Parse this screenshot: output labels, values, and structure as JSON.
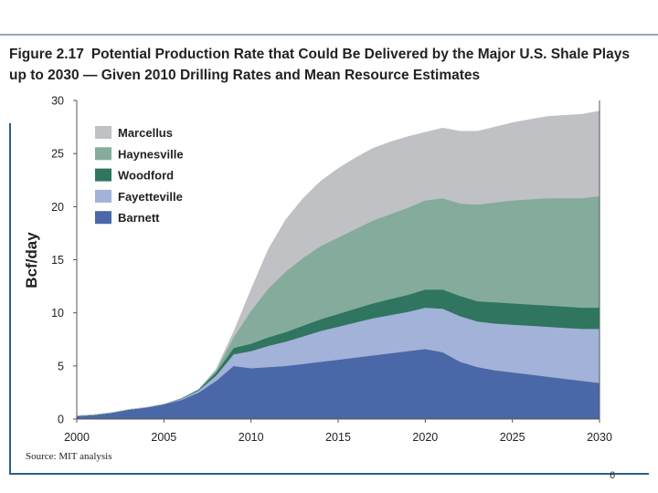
{
  "figure": {
    "number": "Figure 2.17",
    "title": "Potential Production Rate that Could Be Delivered by the Major U.S. Shale Plays up to 2030 — Given 2010 Drilling Rates and Mean Resource Estimates",
    "source": "Source: MIT analysis",
    "page_number": "6"
  },
  "chart_data": {
    "type": "area",
    "stacked": true,
    "title": "Potential Production Rate that Could Be Delivered by the Major U.S. Shale Plays up to 2030 — Given 2010 Drilling Rates and Mean Resource Estimates",
    "xlabel": "",
    "ylabel": "Bcf/day",
    "xlim": [
      2000,
      2030
    ],
    "ylim": [
      0,
      30
    ],
    "x_ticks": [
      2000,
      2005,
      2010,
      2015,
      2020,
      2025,
      2030
    ],
    "y_ticks": [
      0,
      5,
      10,
      15,
      20,
      25,
      30
    ],
    "grid": false,
    "legend_position": "top-left",
    "x": [
      2000,
      2001,
      2002,
      2003,
      2004,
      2005,
      2006,
      2007,
      2008,
      2009,
      2010,
      2011,
      2012,
      2013,
      2014,
      2015,
      2016,
      2017,
      2018,
      2019,
      2020,
      2021,
      2022,
      2023,
      2024,
      2025,
      2026,
      2027,
      2028,
      2029,
      2030
    ],
    "series": [
      {
        "name": "Barnett",
        "color": "#4a68a8",
        "values": [
          0.3,
          0.4,
          0.6,
          0.9,
          1.1,
          1.4,
          1.8,
          2.5,
          3.6,
          5.0,
          4.8,
          4.9,
          5.0,
          5.2,
          5.4,
          5.6,
          5.8,
          6.0,
          6.2,
          6.4,
          6.6,
          6.3,
          5.4,
          4.9,
          4.6,
          4.4,
          4.2,
          4.0,
          3.8,
          3.6,
          3.4
        ]
      },
      {
        "name": "Fayetteville",
        "color": "#a2b2d8",
        "values": [
          0,
          0,
          0,
          0,
          0,
          0,
          0.1,
          0.2,
          0.5,
          1.1,
          1.6,
          2.0,
          2.3,
          2.6,
          2.9,
          3.1,
          3.3,
          3.5,
          3.6,
          3.7,
          3.9,
          4.1,
          4.3,
          4.3,
          4.4,
          4.5,
          4.6,
          4.7,
          4.8,
          4.9,
          5.1
        ]
      },
      {
        "name": "Woodford",
        "color": "#2f7560",
        "values": [
          0,
          0,
          0,
          0,
          0,
          0,
          0.05,
          0.1,
          0.3,
          0.6,
          0.7,
          0.8,
          0.9,
          1.0,
          1.1,
          1.2,
          1.3,
          1.4,
          1.5,
          1.6,
          1.7,
          1.8,
          1.9,
          1.9,
          2.0,
          2.0,
          2.0,
          2.0,
          2.0,
          2.0,
          2.0
        ]
      },
      {
        "name": "Haynesville",
        "color": "#84ab9b",
        "values": [
          0,
          0,
          0,
          0,
          0,
          0,
          0,
          0,
          0.2,
          1.0,
          3.1,
          4.6,
          5.7,
          6.4,
          6.9,
          7.2,
          7.5,
          7.8,
          8.0,
          8.2,
          8.4,
          8.6,
          8.7,
          9.1,
          9.4,
          9.7,
          9.9,
          10.1,
          10.2,
          10.3,
          10.5
        ]
      },
      {
        "name": "Marcellus",
        "color": "#bfc1c4",
        "values": [
          0,
          0,
          0,
          0,
          0,
          0,
          0,
          0,
          0.1,
          0.5,
          2.0,
          3.7,
          4.9,
          5.6,
          6.1,
          6.5,
          6.7,
          6.8,
          6.8,
          6.7,
          6.4,
          6.6,
          6.8,
          6.9,
          7.1,
          7.3,
          7.5,
          7.7,
          7.8,
          7.9,
          8.0
        ]
      }
    ]
  }
}
